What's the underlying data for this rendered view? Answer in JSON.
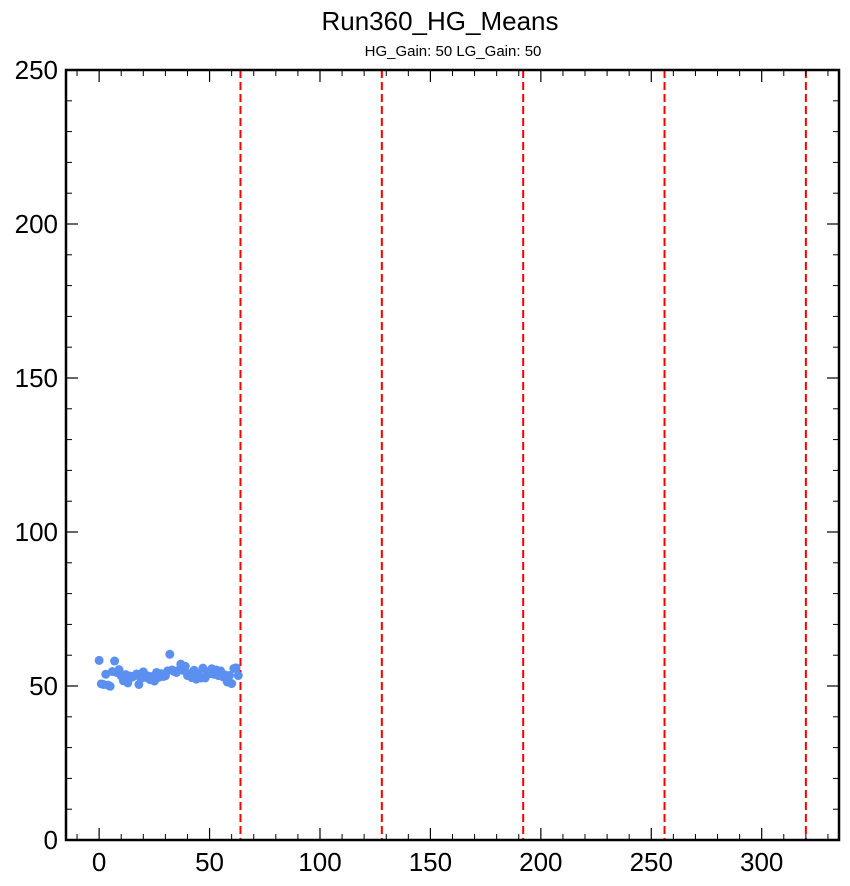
{
  "chart_data": {
    "type": "scatter",
    "title": "Run360_HG_Means",
    "subtitle": "HG_Gain: 50   LG_Gain: 50",
    "xlabel": "",
    "ylabel": "",
    "xlim": [
      -15,
      335
    ],
    "ylim": [
      0,
      250
    ],
    "x_ticks": [
      0,
      50,
      100,
      150,
      200,
      250,
      300
    ],
    "y_ticks": [
      0,
      50,
      100,
      150,
      200,
      250
    ],
    "x_minor_step": 10,
    "y_minor_step": 10,
    "marker_color": "#5b8ff0",
    "vline_color": "#ff0000",
    "vlines": [
      64,
      128,
      192,
      256,
      320
    ],
    "grid": false,
    "series": [
      {
        "x": [
          0,
          1,
          2,
          3,
          4,
          5,
          6,
          7,
          8,
          9,
          10,
          11,
          12,
          13,
          14,
          15,
          16,
          17,
          18,
          19,
          20,
          21,
          22,
          23,
          24,
          25,
          26,
          27,
          28,
          29,
          30,
          31,
          32,
          33,
          34,
          35,
          36,
          37,
          38,
          39,
          40,
          41,
          42,
          43,
          44,
          45,
          46,
          47,
          48,
          49,
          50,
          51,
          52,
          53,
          54,
          55,
          56,
          57,
          58,
          59,
          60,
          61,
          62,
          63
        ],
        "y": [
          58.3,
          50.7,
          50.5,
          53.8,
          50.3,
          49.9,
          54.7,
          58.1,
          54.4,
          55.3,
          53.3,
          51.7,
          53.7,
          51.0,
          53.2,
          52.9,
          53.3,
          53.9,
          50.5,
          52.5,
          54.6,
          52.8,
          53.3,
          52.1,
          53.1,
          51.6,
          54.4,
          52.8,
          54.0,
          53.1,
          53.3,
          54.9,
          60.3,
          55.2,
          54.7,
          54.4,
          55.1,
          57.1,
          55.1,
          56.4,
          53.4,
          54.0,
          52.7,
          55.1,
          52.2,
          53.8,
          52.6,
          55.8,
          52.6,
          54.5,
          54.0,
          55.6,
          53.8,
          55.2,
          53.4,
          54.9,
          53.0,
          53.6,
          51.3,
          53.4,
          50.8,
          55.7,
          55.9,
          53.4
        ]
      }
    ]
  }
}
